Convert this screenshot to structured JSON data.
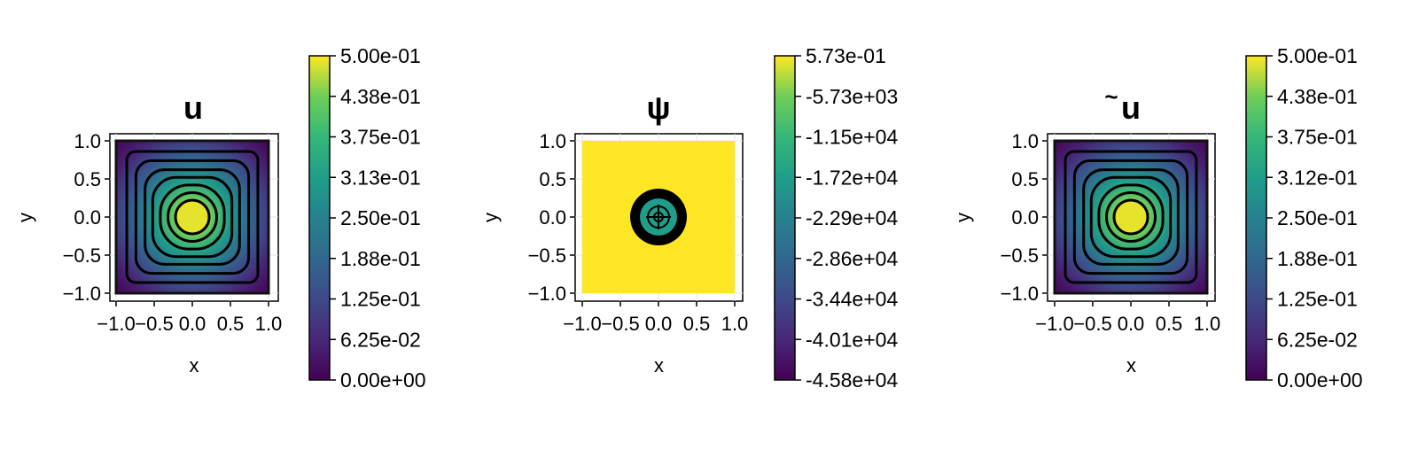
{
  "chart_data": [
    {
      "type": "heatmap",
      "title": "u",
      "xlabel": "x",
      "ylabel": "y",
      "xlim": [
        -1.0,
        1.0
      ],
      "ylim": [
        -1.0,
        1.0
      ],
      "x_ticks": [
        "−1.0",
        "−0.5",
        "0.0",
        "0.5",
        "1.0"
      ],
      "y_ticks": [
        "−1.0",
        "−0.5",
        "0.0",
        "0.5",
        "1.0"
      ],
      "colormap": "viridis",
      "field": "smooth bump centered at origin, zero on boundary",
      "contour_levels": 7,
      "colorbar": {
        "range": [
          0.0,
          0.5
        ],
        "ticks": [
          "5.00e-01",
          "4.38e-01",
          "3.75e-01",
          "3.13e-01",
          "2.50e-01",
          "1.88e-01",
          "1.25e-01",
          "6.25e-02",
          "0.00e+00"
        ]
      }
    },
    {
      "type": "heatmap",
      "title": "ψ",
      "xlabel": "x",
      "ylabel": "y",
      "xlim": [
        -1.0,
        1.0
      ],
      "ylim": [
        -1.0,
        1.0
      ],
      "x_ticks": [
        "−1.0",
        "−0.5",
        "0.0",
        "0.5",
        "1.0"
      ],
      "y_ticks": [
        "−1.0",
        "−0.5",
        "0.0",
        "0.5",
        "1.0"
      ],
      "colormap": "viridis",
      "field": "near maximum everywhere, strongly negative in a small disc at origin",
      "colorbar": {
        "range": [
          -45800,
          0.573
        ],
        "ticks": [
          "5.73e-01",
          "-5.73e+03",
          "-1.15e+04",
          "-1.72e+04",
          "-2.29e+04",
          "-2.86e+04",
          "-3.44e+04",
          "-4.01e+04",
          "-4.58e+04"
        ]
      }
    },
    {
      "type": "heatmap",
      "title": "u",
      "title_accent": "~",
      "xlabel": "x",
      "ylabel": "y",
      "xlim": [
        -1.0,
        1.0
      ],
      "ylim": [
        -1.0,
        1.0
      ],
      "x_ticks": [
        "−1.0",
        "−0.5",
        "0.0",
        "0.5",
        "1.0"
      ],
      "y_ticks": [
        "−1.0",
        "−0.5",
        "0.0",
        "0.5",
        "1.0"
      ],
      "colormap": "viridis",
      "field": "smooth bump centered at origin, zero on boundary",
      "contour_levels": 7,
      "colorbar": {
        "range": [
          0.0,
          0.5
        ],
        "ticks": [
          "5.00e-01",
          "4.38e-01",
          "3.75e-01",
          "3.12e-01",
          "2.50e-01",
          "1.88e-01",
          "1.25e-01",
          "6.25e-02",
          "0.00e+00"
        ]
      }
    }
  ]
}
